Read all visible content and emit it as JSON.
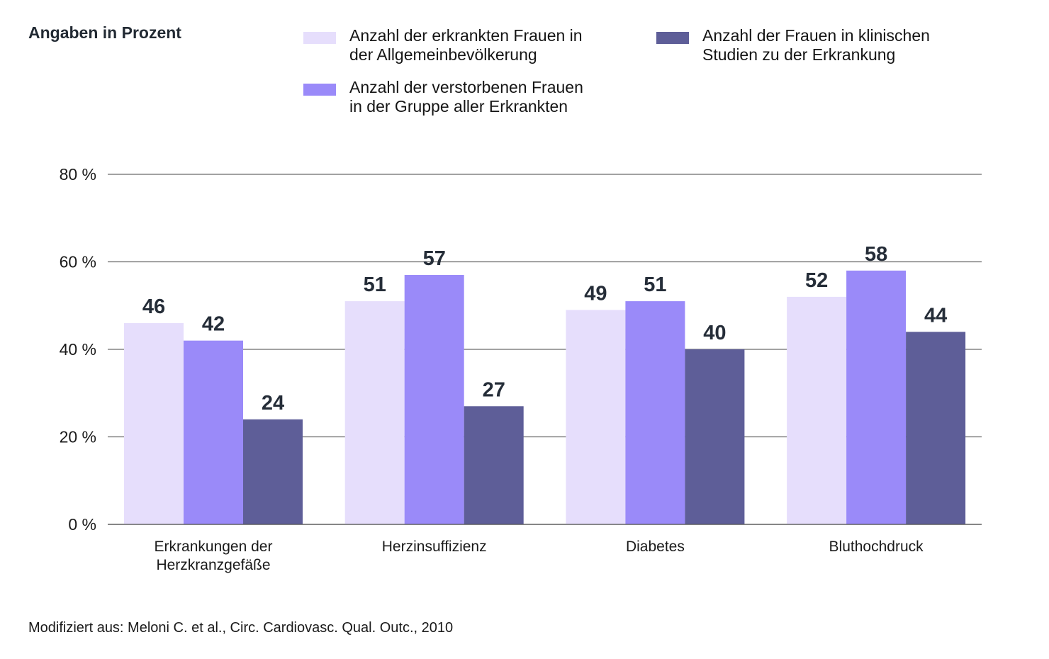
{
  "chart_data": {
    "type": "bar",
    "title": "",
    "unit_label": "Angaben in Prozent",
    "xlabel": "",
    "ylabel": "",
    "ylim": [
      0,
      80
    ],
    "yticks": [
      0,
      20,
      40,
      60,
      80
    ],
    "ytick_labels": [
      "0 %",
      "20 %",
      "40 %",
      "60 %",
      "80 %"
    ],
    "grid": true,
    "legend_position": "top",
    "categories": [
      [
        "Erkrankungen der",
        "Herzkranzgefäße"
      ],
      [
        "Herzinsuffizienz"
      ],
      [
        "Diabetes"
      ],
      [
        "Bluthochdruck"
      ]
    ],
    "series": [
      {
        "name": "Anzahl der erkrankten Frauen in der Allgemeinbevölkerung",
        "legend_text": "Anzahl der erkrankten Frauen in\nder Allgemeinbevölkerung",
        "color": "#e6defc",
        "values": [
          46,
          51,
          49,
          52
        ]
      },
      {
        "name": "Anzahl der verstorbenen Frauen in der Gruppe aller Erkrankten",
        "legend_text": "Anzahl der verstorbenen Frauen\nin der Gruppe aller Erkrankten",
        "color": "#9a8af9",
        "values": [
          42,
          57,
          51,
          58
        ]
      },
      {
        "name": "Anzahl der Frauen in klinischen Studien zu der Erkrankung",
        "legend_text": "Anzahl der Frauen in klinischen\nStudien zu der Erkrankung",
        "color": "#5e5e98",
        "values": [
          24,
          27,
          40,
          44
        ]
      }
    ],
    "source": "Modifiziert aus: Meloni C. et al., Circ. Cardiovasc. Qual. Outc., 2010"
  }
}
